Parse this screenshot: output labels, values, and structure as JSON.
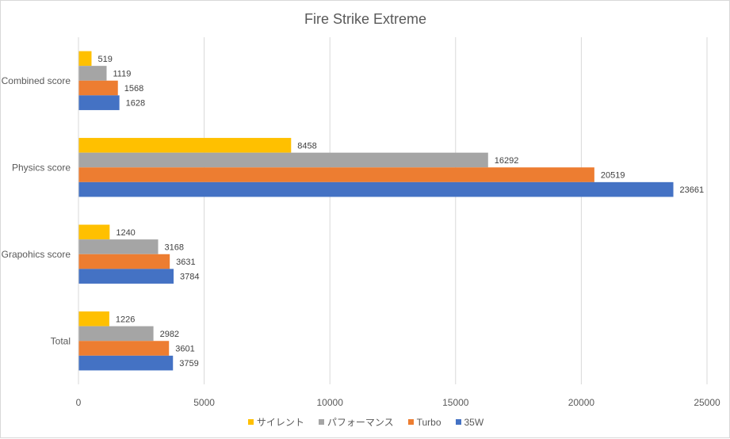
{
  "chart_data": {
    "type": "bar",
    "orientation": "horizontal",
    "title": "Fire Strike Extreme",
    "categories": [
      "Combined score",
      "Physics score",
      "Grapohics score",
      "Total"
    ],
    "series": [
      {
        "name": "サイレント",
        "color": "#ffc000",
        "values": [
          519,
          8458,
          1240,
          1226
        ]
      },
      {
        "name": "パフォーマンス",
        "color": "#a5a5a5",
        "values": [
          1119,
          16292,
          3168,
          2982
        ]
      },
      {
        "name": "Turbo",
        "color": "#ed7d31",
        "values": [
          1568,
          20519,
          3631,
          3601
        ]
      },
      {
        "name": "35W",
        "color": "#4472c4",
        "values": [
          1628,
          23661,
          3784,
          3759
        ]
      }
    ],
    "xlim": [
      0,
      25000
    ],
    "xticks": [
      0,
      5000,
      10000,
      15000,
      20000,
      25000
    ],
    "grid": true,
    "legend_position": "bottom",
    "data_labels": true
  }
}
